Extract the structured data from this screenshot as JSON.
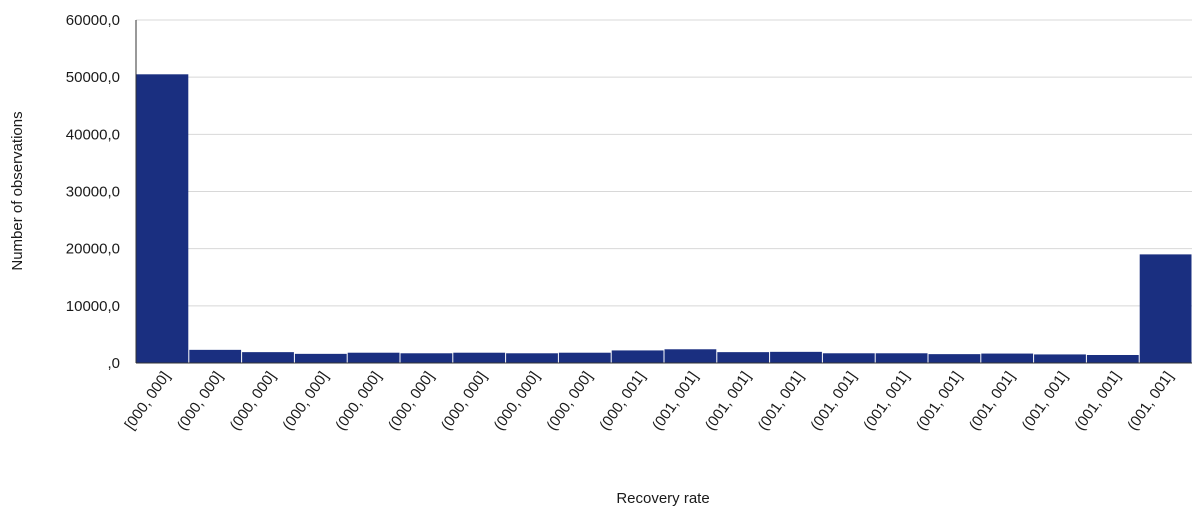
{
  "chart_data": {
    "type": "bar",
    "title": "",
    "xlabel": "Recovery rate",
    "ylabel": "Number of observations",
    "ylim": [
      0,
      60000
    ],
    "yticks": [
      0,
      10000,
      20000,
      30000,
      40000,
      50000,
      60000
    ],
    "ytick_labels": [
      ",0",
      "10000,0",
      "20000,0",
      "30000,0",
      "40000,0",
      "50000,0",
      "60000,0"
    ],
    "grid": true,
    "legend": "none",
    "bar_color": "#1a2f80",
    "categories": [
      "[000, 000]",
      "(000, 000]",
      "(000, 000]",
      "(000, 000]",
      "(000, 000]",
      "(000, 000]",
      "(000, 000]",
      "(000, 000]",
      "(000, 000]",
      "(000, 001]",
      "(001, 001]",
      "(001, 001]",
      "(001, 001]",
      "(001, 001]",
      "(001, 001]",
      "(001, 001]",
      "(001, 001]",
      "(001, 001]",
      "(001, 001]",
      "(001, 001]"
    ],
    "values": [
      50500,
      2300,
      1900,
      1600,
      1800,
      1700,
      1800,
      1700,
      1800,
      2200,
      2400,
      1900,
      1950,
      1700,
      1700,
      1550,
      1650,
      1500,
      1400,
      19000
    ]
  }
}
